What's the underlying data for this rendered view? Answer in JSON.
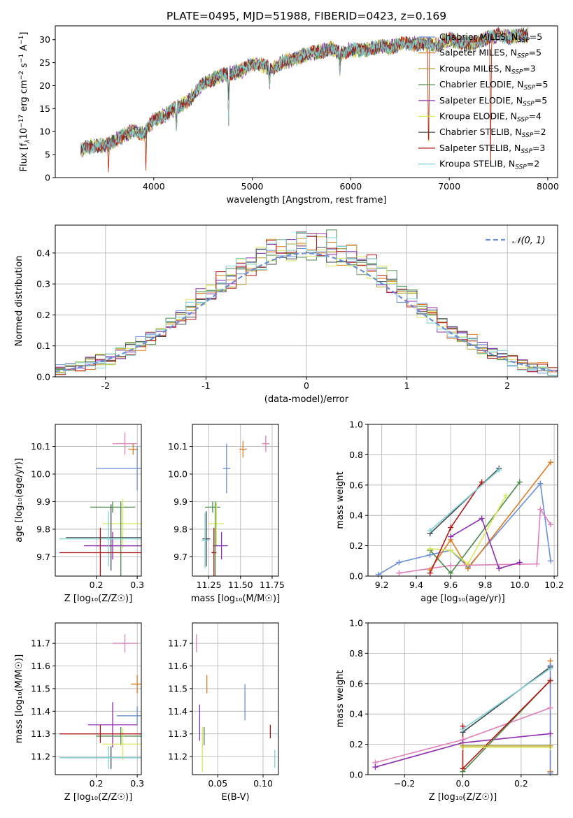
{
  "figure": {
    "title": "PLATE=0495, MJD=51988, FIBERID=0423, z=0.169"
  },
  "series_colors": {
    "Chabrier MILES": "#6a8fd8",
    "Salpeter MILES": "#e07b20",
    "Kroupa MILES": "#b8a030",
    "Chabrier ELODIE": "#4c8a4c",
    "Salpeter ELODIE": "#8e2fb0",
    "Kroupa ELODIE": "#d8e85a",
    "Chabrier STELIB": "#404850",
    "Salpeter STELIB": "#b01818",
    "Kroupa STELIB": "#7fd0d0",
    "Chabrier pink": "#e07fb8"
  },
  "chart_data": [
    {
      "id": "spectrum",
      "type": "line",
      "xlabel": "wavelength [Angstrom, rest frame]",
      "ylabel": "Flux [f",
      "ylabel_parts": [
        "Flux [f",
        "λ",
        "10",
        "−17",
        " erg cm",
        "−2",
        " s",
        "−1",
        " A",
        "−1",
        "]"
      ],
      "xlim": [
        3000,
        8100
      ],
      "ylim": [
        0,
        33
      ],
      "xticks": [
        4000,
        5000,
        6000,
        7000,
        8000
      ],
      "yticks": [
        0,
        5,
        10,
        15,
        20,
        25,
        30
      ],
      "grid": false,
      "legend_position": "top-right",
      "continuum": {
        "x": [
          3260,
          3400,
          3500,
          3600,
          3700,
          3800,
          3900,
          4000,
          4100,
          4200,
          4300,
          4400,
          4500,
          4600,
          4700,
          4800,
          4900,
          5000,
          5100,
          5200,
          5300,
          5400,
          5500,
          5600,
          5700,
          5800,
          5900,
          6000,
          6100,
          6200,
          6300,
          6400,
          6500,
          6600,
          6700,
          6800,
          6900,
          7000,
          7100,
          7200,
          7300,
          7400,
          7500,
          7600,
          7700,
          7800
        ],
        "y": [
          6.0,
          7.0,
          6.8,
          8.0,
          9.2,
          10.3,
          9.5,
          12.5,
          13.5,
          14.8,
          16.0,
          17.8,
          20.5,
          21.5,
          22.3,
          22.8,
          23.3,
          24.8,
          24.5,
          23.5,
          25.0,
          25.5,
          26.5,
          27.0,
          27.5,
          28.0,
          27.0,
          28.0,
          27.5,
          28.0,
          28.5,
          28.3,
          29.0,
          29.0,
          29.2,
          28.8,
          29.0,
          30.0,
          29.5,
          29.0,
          29.5,
          30.5,
          31.0,
          30.5,
          30.8,
          31.0
        ]
      },
      "features": [
        {
          "x": 3540,
          "y": 0.5
        },
        {
          "x": 3920,
          "y": 0.5
        },
        {
          "x": 4230,
          "y": 8.5
        },
        {
          "x": 4760,
          "y": 10.0
        },
        {
          "x": 5175,
          "y": 18.5
        },
        {
          "x": 5890,
          "y": 20.5
        },
        {
          "x": 6790,
          "y": 0.0
        },
        {
          "x": 7420,
          "y": 0.0
        }
      ],
      "legend": [
        {
          "name": "Chabrier MILES, N",
          "sub": "SSP",
          "suffix": "=5",
          "color": "#6a8fd8"
        },
        {
          "name": "Salpeter MILES, N",
          "sub": "SSP",
          "suffix": "=5",
          "color": "#e07b20"
        },
        {
          "name": "Kroupa MILES, N",
          "sub": "SSP",
          "suffix": "=3",
          "color": "#b8a030"
        },
        {
          "name": "Chabrier ELODIE, N",
          "sub": "SSP",
          "suffix": "=5",
          "color": "#4c8a4c"
        },
        {
          "name": "Salpeter ELODIE, N",
          "sub": "SSP",
          "suffix": "=5",
          "color": "#8e2fb0"
        },
        {
          "name": "Kroupa ELODIE, N",
          "sub": "SSP",
          "suffix": "=4",
          "color": "#d8e85a"
        },
        {
          "name": "Chabrier STELIB, N",
          "sub": "SSP",
          "suffix": "=2",
          "color": "#404850"
        },
        {
          "name": "Salpeter STELIB, N",
          "sub": "SSP",
          "suffix": "=3",
          "color": "#b01818"
        },
        {
          "name": "Kroupa STELIB, N",
          "sub": "SSP",
          "suffix": "=2",
          "color": "#7fd0d0"
        }
      ]
    },
    {
      "id": "residuals",
      "type": "histogram",
      "xlabel": "(data-model)/error",
      "ylabel": "Normed distribution",
      "xlim": [
        -2.5,
        2.5
      ],
      "ylim": [
        0,
        0.49
      ],
      "xticks": [
        -2,
        -1,
        0,
        1,
        2
      ],
      "yticks": [
        0.0,
        0.1,
        0.2,
        0.3,
        0.4
      ],
      "ytick_labels": [
        "0.0",
        "0.1",
        "0.2",
        "0.3",
        "0.4"
      ],
      "grid": true,
      "legend_position": "top-right",
      "legend": [
        {
          "name": "𝒩(0, 1)",
          "color": "#6a8fd8",
          "style": "dashed"
        }
      ],
      "bin_width": 0.1,
      "bin_start": -2.5,
      "histogram_colors": [
        "#6a8fd8",
        "#e07b20",
        "#b8a030",
        "#4c8a4c",
        "#8e2fb0",
        "#d8e85a",
        "#404850",
        "#b01818",
        "#7fd0d0"
      ]
    },
    {
      "id": "age-vs-Z",
      "type": "errorbar",
      "xlabel": "Z [log₁₀(Z/Z☉)]",
      "ylabel": "age  [log₁₀(age/yr)]",
      "xlim": [
        0.1,
        0.31
      ],
      "ylim": [
        9.63,
        10.18
      ],
      "xticks": [
        0.2,
        0.3
      ],
      "xtick_labels": [
        "0.2",
        "0.3"
      ],
      "yticks": [
        9.7,
        9.8,
        9.9,
        10.0,
        10.1
      ],
      "ytick_labels": [
        "9.7",
        "9.8",
        "9.9",
        "10.0",
        "10.1"
      ],
      "grid": true,
      "points": [
        {
          "x": 0.27,
          "y": 10.11,
          "xerr": 0.03,
          "yerr": 0.04,
          "color": "#e07fb8"
        },
        {
          "x": 0.29,
          "y": 10.09,
          "xerr": 0.012,
          "yerr": 0.02,
          "color": "#e07b20"
        },
        {
          "x": 0.3,
          "y": 10.02,
          "xerr": 0.1,
          "yerr": 0.08,
          "color": "#6a8fd8"
        },
        {
          "x": 0.24,
          "y": 9.88,
          "xerr": 0.055,
          "yerr": 0.02,
          "color": "#4c8a4c"
        },
        {
          "x": 0.265,
          "y": 9.82,
          "xerr": 0.05,
          "yerr": 0.09,
          "color": "#d8e85a"
        },
        {
          "x": 0.26,
          "y": 9.74,
          "xerr": 0.06,
          "yerr": 0.16,
          "color": "#4c8a4c"
        },
        {
          "x": 0.24,
          "y": 9.74,
          "xerr": 0.07,
          "yerr": 0.05,
          "color": "#8e2fb0"
        },
        {
          "x": 0.236,
          "y": 9.77,
          "xerr": 0.11,
          "yerr": 0.12,
          "color": "#404850"
        },
        {
          "x": 0.23,
          "y": 9.765,
          "xerr": 0.12,
          "yerr": 0.1,
          "color": "#7fd0d0"
        },
        {
          "x": 0.21,
          "y": 9.715,
          "xerr": 0.1,
          "yerr": 0.09,
          "color": "#b01818"
        }
      ]
    },
    {
      "id": "age-vs-mass",
      "type": "errorbar",
      "xlabel": "mass [log₁₀(M/M☉)]",
      "ylabel": "",
      "xlim": [
        11.12,
        11.8
      ],
      "ylim": [
        9.63,
        10.18
      ],
      "xticks": [
        11.25,
        11.5,
        11.75
      ],
      "xtick_labels": [
        "11.25",
        "11.50",
        "11.75"
      ],
      "yticks": [
        9.7,
        9.8,
        9.9,
        10.0,
        10.1
      ],
      "ytick_labels": [
        "9.7",
        "9.8",
        "9.9",
        "10.0",
        "10.1"
      ],
      "grid": true,
      "points": [
        {
          "x": 11.7,
          "y": 10.11,
          "xerr": 0.03,
          "yerr": 0.03,
          "color": "#e07fb8"
        },
        {
          "x": 11.52,
          "y": 10.09,
          "xerr": 0.03,
          "yerr": 0.03,
          "color": "#e07b20"
        },
        {
          "x": 11.39,
          "y": 10.02,
          "xerr": 0.03,
          "yerr": 0.09,
          "color": "#6a8fd8"
        },
        {
          "x": 11.28,
          "y": 9.88,
          "xerr": 0.06,
          "yerr": 0.02,
          "color": "#4c8a4c"
        },
        {
          "x": 11.31,
          "y": 9.82,
          "xerr": 0.06,
          "yerr": 0.08,
          "color": "#d8e85a"
        },
        {
          "x": 11.3,
          "y": 9.74,
          "xerr": 0.02,
          "yerr": 0.16,
          "color": "#4c8a4c"
        },
        {
          "x": 11.35,
          "y": 9.74,
          "xerr": 0.05,
          "yerr": 0.05,
          "color": "#8e2fb0"
        },
        {
          "x": 11.23,
          "y": 9.765,
          "xerr": 0.03,
          "yerr": 0.1,
          "color": "#404850"
        },
        {
          "x": 11.22,
          "y": 9.76,
          "xerr": 0.03,
          "yerr": 0.1,
          "color": "#7fd0d0"
        },
        {
          "x": 11.29,
          "y": 9.715,
          "xerr": 0.02,
          "yerr": 0.09,
          "color": "#b01818"
        }
      ]
    },
    {
      "id": "mass-weight-vs-age",
      "type": "line",
      "xlabel": "age  [log₁₀(age/yr)]",
      "ylabel": "mass weight",
      "xlim": [
        9.12,
        10.22
      ],
      "ylim": [
        0,
        1
      ],
      "xticks": [
        9.2,
        9.4,
        9.6,
        9.8,
        10.0,
        10.2
      ],
      "xtick_labels": [
        "9.2",
        "9.4",
        "9.6",
        "9.8",
        "10.0",
        "10.2"
      ],
      "yticks": [
        0.0,
        0.2,
        0.4,
        0.6,
        0.8,
        1.0
      ],
      "ytick_labels": [
        "0.0",
        "0.2",
        "0.4",
        "0.6",
        "0.8",
        "1.0"
      ],
      "grid": true,
      "series": [
        {
          "color": "#6a8fd8",
          "x": [
            9.18,
            9.3,
            9.48,
            9.6,
            9.7,
            10.12,
            10.18
          ],
          "y": [
            0.01,
            0.09,
            0.14,
            0.17,
            0.06,
            0.61,
            0.1
          ]
        },
        {
          "color": "#e07b20",
          "x": [
            9.48,
            9.6,
            9.7,
            10.18
          ],
          "y": [
            0.04,
            0.24,
            0.05,
            0.75
          ]
        },
        {
          "color": "#e07fb8",
          "x": [
            9.3,
            9.6,
            10.1,
            10.12,
            10.18
          ],
          "y": [
            0.02,
            0.07,
            0.08,
            0.44,
            0.34
          ]
        },
        {
          "color": "#4c8a4c",
          "x": [
            9.48,
            9.6,
            10.0
          ],
          "y": [
            0.17,
            0.02,
            0.62
          ]
        },
        {
          "color": "#8e2fb0",
          "x": [
            9.6,
            9.78,
            9.88,
            10.0
          ],
          "y": [
            0.26,
            0.38,
            0.05,
            0.09
          ]
        },
        {
          "color": "#d8e85a",
          "x": [
            9.48,
            9.6,
            9.7,
            9.92
          ],
          "y": [
            0.18,
            0.17,
            0.08,
            0.53
          ]
        },
        {
          "color": "#404850",
          "x": [
            9.48,
            9.88
          ],
          "y": [
            0.28,
            0.71
          ]
        },
        {
          "color": "#b01818",
          "x": [
            9.48,
            9.6,
            9.78
          ],
          "y": [
            0.02,
            0.32,
            0.62
          ]
        },
        {
          "color": "#7fd0d0",
          "x": [
            9.48,
            9.88
          ],
          "y": [
            0.3,
            0.7
          ]
        }
      ]
    },
    {
      "id": "mass-vs-Z",
      "type": "errorbar",
      "xlabel": "Z [log₁₀(Z/Z☉)]",
      "ylabel": "mass [log₁₀(M/M☉)]",
      "xlim": [
        0.1,
        0.31
      ],
      "ylim": [
        11.12,
        11.79
      ],
      "xticks": [
        0.2,
        0.3
      ],
      "xtick_labels": [
        "0.2",
        "0.3"
      ],
      "yticks": [
        11.2,
        11.3,
        11.4,
        11.5,
        11.6,
        11.7
      ],
      "ytick_labels": [
        "11.2",
        "11.3",
        "11.4",
        "11.5",
        "11.6",
        "11.7"
      ],
      "grid": true,
      "points": [
        {
          "x": 0.27,
          "y": 11.7,
          "xerr": 0.03,
          "yerr": 0.04,
          "color": "#e07fb8"
        },
        {
          "x": 0.3,
          "y": 11.52,
          "xerr": 0.015,
          "yerr": 0.04,
          "color": "#e07b20"
        },
        {
          "x": 0.3,
          "y": 11.38,
          "xerr": 0.05,
          "yerr": 0.04,
          "color": "#6a8fd8"
        },
        {
          "x": 0.24,
          "y": 11.34,
          "xerr": 0.06,
          "yerr": 0.1,
          "color": "#8e2fb0"
        },
        {
          "x": 0.26,
          "y": 11.29,
          "xerr": 0.06,
          "yerr": 0.04,
          "color": "#4c8a4c"
        },
        {
          "x": 0.265,
          "y": 11.255,
          "xerr": 0.05,
          "yerr": 0.07,
          "color": "#d8e85a"
        },
        {
          "x": 0.21,
          "y": 11.3,
          "xerr": 0.1,
          "yerr": 0.04,
          "color": "#b01818"
        },
        {
          "x": 0.236,
          "y": 11.195,
          "xerr": 0.12,
          "yerr": 0.05,
          "color": "#404850"
        },
        {
          "x": 0.23,
          "y": 11.195,
          "xerr": 0.12,
          "yerr": 0.05,
          "color": "#7fd0d0"
        }
      ]
    },
    {
      "id": "mass-vs-ebv",
      "type": "errorbar",
      "xlabel": "E(B-V)",
      "ylabel": "",
      "xlim": [
        0.022,
        0.117
      ],
      "ylim": [
        11.12,
        11.79
      ],
      "xticks": [
        0.05,
        0.1
      ],
      "xtick_labels": [
        "0.05",
        "0.10"
      ],
      "yticks": [
        11.2,
        11.3,
        11.4,
        11.5,
        11.6,
        11.7
      ],
      "ytick_labels": [
        "11.2",
        "11.3",
        "11.4",
        "11.5",
        "11.6",
        "11.7"
      ],
      "grid": true,
      "points": [
        {
          "x": 0.0265,
          "y": 11.7,
          "xerr": 0,
          "yerr": 0.04,
          "color": "#e07fb8"
        },
        {
          "x": 0.038,
          "y": 11.52,
          "xerr": 0,
          "yerr": 0.04,
          "color": "#e07b20"
        },
        {
          "x": 0.08,
          "y": 11.44,
          "xerr": 0,
          "yerr": 0.08,
          "color": "#6a8fd8"
        },
        {
          "x": 0.03,
          "y": 11.35,
          "xerr": 0,
          "yerr": 0.08,
          "color": "#8e2fb0"
        },
        {
          "x": 0.035,
          "y": 11.29,
          "xerr": 0,
          "yerr": 0.04,
          "color": "#4c8a4c"
        },
        {
          "x": 0.033,
          "y": 11.23,
          "xerr": 0,
          "yerr": 0.1,
          "color": "#d8e85a"
        },
        {
          "x": 0.108,
          "y": 11.31,
          "xerr": 0,
          "yerr": 0.03,
          "color": "#b01818"
        },
        {
          "x": 0.113,
          "y": 11.19,
          "xerr": 0,
          "yerr": 0.04,
          "color": "#7fd0d0"
        }
      ]
    },
    {
      "id": "mass-weight-vs-Z",
      "type": "line",
      "xlabel": "Z [log₁₀(Z/Z☉)]",
      "ylabel": "mass weight",
      "xlim": [
        -0.325,
        0.325
      ],
      "ylim": [
        0,
        1
      ],
      "xticks": [
        -0.2,
        0.0,
        0.2
      ],
      "xtick_labels": [
        "−0.2",
        "0.0",
        "0.2"
      ],
      "yticks": [
        0.0,
        0.2,
        0.4,
        0.6,
        0.8,
        1.0
      ],
      "ytick_labels": [
        "0.0",
        "0.2",
        "0.4",
        "0.6",
        "0.8",
        "1.0"
      ],
      "grid": true,
      "series": [
        {
          "color": "#e07fb8",
          "x": [
            -0.3,
            0.0,
            0.3
          ],
          "y": [
            0.08,
            0.23,
            0.44
          ]
        },
        {
          "color": "#8e2fb0",
          "x": [
            -0.3,
            0.0,
            0.3
          ],
          "y": [
            0.05,
            0.21,
            0.27
          ]
        },
        {
          "color": "#404850",
          "x": [
            0.0,
            0.3
          ],
          "y": [
            0.28,
            0.71
          ]
        },
        {
          "color": "#7fd0d0",
          "x": [
            0.0,
            0.3
          ],
          "y": [
            0.3,
            0.7
          ]
        },
        {
          "color": "#4c8a4c",
          "x": [
            0.0,
            0.3
          ],
          "y": [
            0.02,
            0.62
          ]
        },
        {
          "color": "#b01818",
          "x": [
            0.0,
            0.0,
            0.3
          ],
          "y": [
            0.32,
            0.04,
            0.62
          ]
        },
        {
          "color": "#d8e85a",
          "x": [
            0.0,
            0.3
          ],
          "y": [
            0.18,
            0.18
          ]
        },
        {
          "color": "#b8a030",
          "x": [
            0.0,
            0.3
          ],
          "y": [
            0.19,
            0.19
          ]
        },
        {
          "color": "#e07b20",
          "x": [
            0.3,
            0.3
          ],
          "y": [
            0.02,
            0.75
          ]
        },
        {
          "color": "#6a8fd8",
          "x": [
            0.3,
            0.3
          ],
          "y": [
            0.01,
            0.72
          ]
        }
      ]
    }
  ]
}
